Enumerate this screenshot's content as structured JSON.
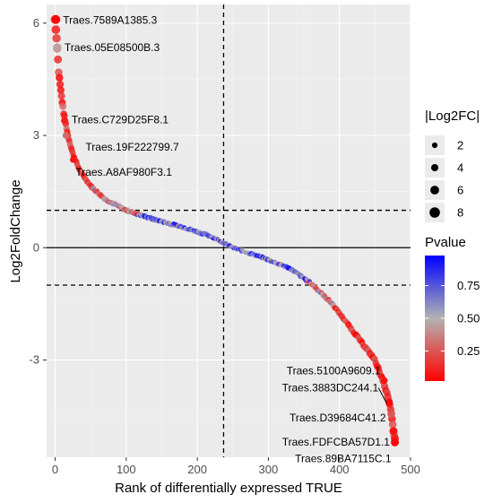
{
  "chart_data": {
    "type": "scatter",
    "title": "",
    "xlabel": "Rank of differentially expressed TRUE",
    "ylabel": "Log2FoldChange",
    "xlim": [
      -12,
      500
    ],
    "ylim": [
      -5.6,
      6.5
    ],
    "x_ticks": [
      0,
      100,
      200,
      300,
      400,
      500
    ],
    "y_ticks": [
      -3,
      0,
      3,
      6
    ],
    "grid": true,
    "reference_lines": {
      "horizontal_solid": [
        0
      ],
      "horizontal_dashed": [
        1,
        -1
      ],
      "vertical_dashed": [
        237
      ]
    },
    "size_legend": {
      "title": "|Log2FC|",
      "values": [
        2,
        4,
        6,
        8
      ]
    },
    "color_legend": {
      "title": "Pvalue",
      "ticks": [
        0.25,
        0.5,
        0.75
      ],
      "low_color": "#ff0000",
      "mid_color": "#b3b3b3",
      "high_color": "#0000ff"
    },
    "labeled_points": [
      {
        "label": "Traes.7589A1385.3",
        "x": 1,
        "y": 6.1,
        "pvalue": 0.02
      },
      {
        "label": "Traes.05E08500B.3",
        "x": 3,
        "y": 5.35,
        "pvalue": 0.45
      },
      {
        "label": "Traes.C729D25F8.1",
        "x": 13,
        "y": 3.4,
        "pvalue": 0.08
      },
      {
        "label": "Traes.19F222799.7",
        "x": 15,
        "y": 3.0,
        "pvalue": 0.3
      },
      {
        "label": "Traes.A8AF980F3.1",
        "x": 25,
        "y": 2.35,
        "pvalue": 0.05
      },
      {
        "label": "Traes.5100A9609.1",
        "x": 463,
        "y": -3.55,
        "pvalue": 0.05
      },
      {
        "label": "Traes.3883DC244.1",
        "x": 470,
        "y": -4.15,
        "pvalue": 0.02
      },
      {
        "label": "Traes.D39684C41.2",
        "x": 473,
        "y": -4.45,
        "pvalue": 0.25
      },
      {
        "label": "Traes.FDFCBA57D1.1",
        "x": 476,
        "y": -4.9,
        "pvalue": 0.05
      },
      {
        "label": "Traes.89BA7115C.1",
        "x": 478,
        "y": -5.2,
        "pvalue": 0.03
      }
    ],
    "curve_profile": [
      {
        "x": 0,
        "y": 6.1
      },
      {
        "x": 3,
        "y": 5.35
      },
      {
        "x": 5,
        "y": 4.7
      },
      {
        "x": 8,
        "y": 4.2
      },
      {
        "x": 12,
        "y": 3.6
      },
      {
        "x": 18,
        "y": 3.0
      },
      {
        "x": 25,
        "y": 2.5
      },
      {
        "x": 35,
        "y": 2.05
      },
      {
        "x": 50,
        "y": 1.65
      },
      {
        "x": 70,
        "y": 1.3
      },
      {
        "x": 100,
        "y": 1.0
      },
      {
        "x": 140,
        "y": 0.75
      },
      {
        "x": 180,
        "y": 0.55
      },
      {
        "x": 220,
        "y": 0.3
      },
      {
        "x": 250,
        "y": 0.0
      },
      {
        "x": 290,
        "y": -0.25
      },
      {
        "x": 330,
        "y": -0.55
      },
      {
        "x": 360,
        "y": -0.95
      },
      {
        "x": 390,
        "y": -1.5
      },
      {
        "x": 410,
        "y": -2.0
      },
      {
        "x": 430,
        "y": -2.5
      },
      {
        "x": 450,
        "y": -3.0
      },
      {
        "x": 460,
        "y": -3.5
      },
      {
        "x": 467,
        "y": -3.9
      },
      {
        "x": 472,
        "y": -4.3
      },
      {
        "x": 476,
        "y": -4.9
      },
      {
        "x": 479,
        "y": -5.2
      }
    ],
    "point_count": 479
  }
}
